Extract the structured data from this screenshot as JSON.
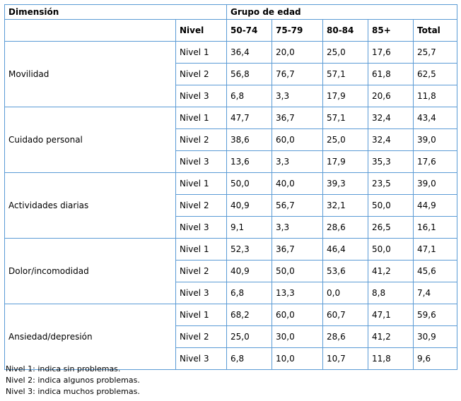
{
  "table": {
    "header": {
      "dimension_label": "Dimensión",
      "group_label": "Grupo de edad",
      "level_label": "Nivel",
      "columns": [
        "50-74",
        "75-79",
        "80-84",
        "85+",
        "Total"
      ]
    },
    "groups": [
      {
        "dimension": "Movilidad",
        "rows": [
          {
            "level": "Nivel 1",
            "values": [
              "36,4",
              "20,0",
              "25,0",
              "17,6",
              "25,7"
            ]
          },
          {
            "level": "Nivel 2",
            "values": [
              "56,8",
              "76,7",
              "57,1",
              "61,8",
              "62,5"
            ]
          },
          {
            "level": "Nivel 3",
            "values": [
              "6,8",
              "3,3",
              "17,9",
              "20,6",
              "11,8"
            ]
          }
        ]
      },
      {
        "dimension": "Cuidado personal",
        "rows": [
          {
            "level": "Nivel 1",
            "values": [
              "47,7",
              "36,7",
              "57,1",
              "32,4",
              "43,4"
            ]
          },
          {
            "level": "Nivel 2",
            "values": [
              "38,6",
              "60,0",
              "25,0",
              "32,4",
              "39,0"
            ]
          },
          {
            "level": "Nivel 3",
            "values": [
              "13,6",
              "3,3",
              "17,9",
              "35,3",
              "17,6"
            ]
          }
        ]
      },
      {
        "dimension": "Actividades diarias",
        "rows": [
          {
            "level": "Nivel 1",
            "values": [
              "50,0",
              "40,0",
              "39,3",
              "23,5",
              "39,0"
            ]
          },
          {
            "level": "Nivel 2",
            "values": [
              "40,9",
              "56,7",
              "32,1",
              "50,0",
              "44,9"
            ]
          },
          {
            "level": "Nivel 3",
            "values": [
              "9,1",
              "3,3",
              "28,6",
              "26,5",
              "16,1"
            ]
          }
        ]
      },
      {
        "dimension": "Dolor/incomodidad",
        "rows": [
          {
            "level": "Nivel 1",
            "values": [
              "52,3",
              "36,7",
              "46,4",
              "50,0",
              "47,1"
            ]
          },
          {
            "level": "Nivel 2",
            "values": [
              "40,9",
              "50,0",
              "53,6",
              "41,2",
              "45,6"
            ]
          },
          {
            "level": "Nivel 3",
            "values": [
              "6,8",
              "13,3",
              "0,0",
              "8,8",
              "7,4"
            ]
          }
        ]
      },
      {
        "dimension": "Ansiedad/depresión",
        "rows": [
          {
            "level": "Nivel 1",
            "values": [
              "68,2",
              "60,0",
              "60,7",
              "47,1",
              "59,6"
            ]
          },
          {
            "level": "Nivel 2",
            "values": [
              "25,0",
              "30,0",
              "28,6",
              "41,2",
              "30,9"
            ]
          },
          {
            "level": "Nivel 3",
            "values": [
              "6,8",
              "10,0",
              "10,7",
              "11,8",
              "9,6"
            ]
          }
        ]
      }
    ]
  },
  "notes": [
    "Nivel 1: indica sin problemas.",
    "Nivel 2: indica algunos problemas.",
    "Nivel 3: indica muchos problemas."
  ]
}
